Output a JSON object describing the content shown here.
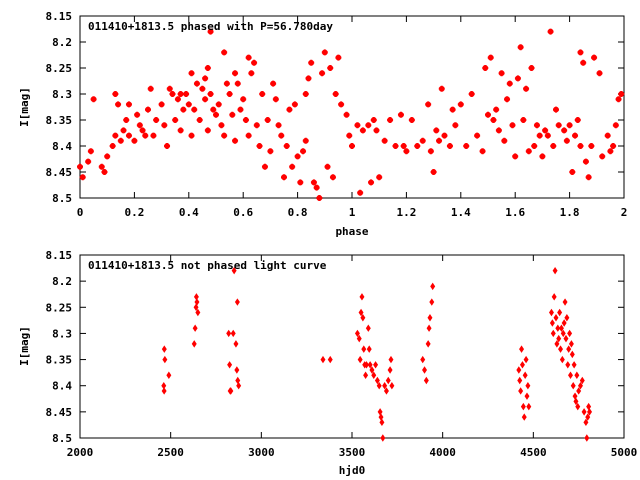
{
  "chart_data": [
    {
      "type": "scatter",
      "title": "011410+1813.5 phased with P=56.780day",
      "xlabel": "phase",
      "ylabel": "I[mag]",
      "xlim": [
        0,
        2
      ],
      "ylim": [
        8.15,
        8.5
      ],
      "y_inverted": true,
      "x_ticks": [
        "0",
        "0.2",
        "0.4",
        "0.6",
        "0.8",
        "1",
        "1.2",
        "1.4",
        "1.6",
        "1.8",
        "2"
      ],
      "y_ticks": [
        "8.15",
        "8.2",
        "8.25",
        "8.3",
        "8.35",
        "8.4",
        "8.45",
        "8.5"
      ],
      "marker": "plus",
      "color": "#ff0000",
      "points": [
        [
          0.0,
          8.44
        ],
        [
          0.01,
          8.46
        ],
        [
          0.03,
          8.43
        ],
        [
          0.04,
          8.41
        ],
        [
          0.05,
          8.31
        ],
        [
          0.08,
          8.44
        ],
        [
          0.09,
          8.45
        ],
        [
          0.1,
          8.42
        ],
        [
          0.12,
          8.4
        ],
        [
          0.13,
          8.3
        ],
        [
          0.13,
          8.38
        ],
        [
          0.14,
          8.32
        ],
        [
          0.15,
          8.39
        ],
        [
          0.16,
          8.37
        ],
        [
          0.17,
          8.35
        ],
        [
          0.18,
          8.38
        ],
        [
          0.18,
          8.32
        ],
        [
          0.2,
          8.39
        ],
        [
          0.21,
          8.34
        ],
        [
          0.22,
          8.36
        ],
        [
          0.23,
          8.37
        ],
        [
          0.24,
          8.38
        ],
        [
          0.25,
          8.33
        ],
        [
          0.26,
          8.29
        ],
        [
          0.27,
          8.38
        ],
        [
          0.28,
          8.35
        ],
        [
          0.3,
          8.32
        ],
        [
          0.31,
          8.36
        ],
        [
          0.32,
          8.4
        ],
        [
          0.33,
          8.29
        ],
        [
          0.34,
          8.3
        ],
        [
          0.35,
          8.35
        ],
        [
          0.36,
          8.31
        ],
        [
          0.37,
          8.37
        ],
        [
          0.37,
          8.3
        ],
        [
          0.38,
          8.33
        ],
        [
          0.39,
          8.3
        ],
        [
          0.4,
          8.32
        ],
        [
          0.41,
          8.38
        ],
        [
          0.41,
          8.26
        ],
        [
          0.42,
          8.33
        ],
        [
          0.43,
          8.28
        ],
        [
          0.44,
          8.35
        ],
        [
          0.45,
          8.29
        ],
        [
          0.46,
          8.27
        ],
        [
          0.46,
          8.31
        ],
        [
          0.47,
          8.25
        ],
        [
          0.47,
          8.37
        ],
        [
          0.48,
          8.3
        ],
        [
          0.48,
          8.18
        ],
        [
          0.49,
          8.33
        ],
        [
          0.5,
          8.34
        ],
        [
          0.51,
          8.32
        ],
        [
          0.52,
          8.36
        ],
        [
          0.53,
          8.22
        ],
        [
          0.53,
          8.38
        ],
        [
          0.54,
          8.28
        ],
        [
          0.55,
          8.3
        ],
        [
          0.56,
          8.34
        ],
        [
          0.57,
          8.39
        ],
        [
          0.57,
          8.26
        ],
        [
          0.58,
          8.28
        ],
        [
          0.59,
          8.33
        ],
        [
          0.6,
          8.31
        ],
        [
          0.61,
          8.35
        ],
        [
          0.62,
          8.23
        ],
        [
          0.62,
          8.38
        ],
        [
          0.63,
          8.26
        ],
        [
          0.64,
          8.24
        ],
        [
          0.65,
          8.36
        ],
        [
          0.66,
          8.4
        ],
        [
          0.67,
          8.3
        ],
        [
          0.68,
          8.44
        ],
        [
          0.69,
          8.35
        ],
        [
          0.7,
          8.41
        ],
        [
          0.71,
          8.28
        ],
        [
          0.72,
          8.31
        ],
        [
          0.73,
          8.36
        ],
        [
          0.74,
          8.38
        ],
        [
          0.75,
          8.46
        ],
        [
          0.76,
          8.4
        ],
        [
          0.77,
          8.33
        ],
        [
          0.78,
          8.44
        ],
        [
          0.79,
          8.32
        ],
        [
          0.8,
          8.42
        ],
        [
          0.81,
          8.47
        ],
        [
          0.82,
          8.41
        ],
        [
          0.83,
          8.39
        ],
        [
          0.83,
          8.3
        ],
        [
          0.84,
          8.27
        ],
        [
          0.85,
          8.24
        ],
        [
          0.86,
          8.47
        ],
        [
          0.87,
          8.48
        ],
        [
          0.88,
          8.5
        ],
        [
          0.89,
          8.26
        ],
        [
          0.9,
          8.22
        ],
        [
          0.91,
          8.44
        ],
        [
          0.92,
          8.25
        ],
        [
          0.93,
          8.46
        ],
        [
          0.94,
          8.3
        ],
        [
          0.95,
          8.23
        ],
        [
          0.96,
          8.32
        ],
        [
          0.98,
          8.34
        ],
        [
          0.99,
          8.38
        ],
        [
          1.0,
          8.4
        ],
        [
          1.02,
          8.36
        ],
        [
          1.03,
          8.49
        ],
        [
          1.04,
          8.37
        ],
        [
          1.06,
          8.36
        ],
        [
          1.07,
          8.47
        ],
        [
          1.08,
          8.35
        ],
        [
          1.09,
          8.37
        ],
        [
          1.1,
          8.46
        ],
        [
          1.12,
          8.39
        ],
        [
          1.14,
          8.35
        ],
        [
          1.16,
          8.4
        ],
        [
          1.18,
          8.34
        ],
        [
          1.19,
          8.4
        ],
        [
          1.2,
          8.41
        ],
        [
          1.22,
          8.35
        ],
        [
          1.24,
          8.4
        ],
        [
          1.26,
          8.39
        ],
        [
          1.28,
          8.32
        ],
        [
          1.29,
          8.41
        ],
        [
          1.3,
          8.45
        ],
        [
          1.31,
          8.37
        ],
        [
          1.32,
          8.39
        ],
        [
          1.33,
          8.29
        ],
        [
          1.34,
          8.38
        ],
        [
          1.36,
          8.4
        ],
        [
          1.37,
          8.33
        ],
        [
          1.38,
          8.36
        ],
        [
          1.4,
          8.32
        ],
        [
          1.42,
          8.4
        ],
        [
          1.44,
          8.3
        ],
        [
          1.46,
          8.38
        ],
        [
          1.48,
          8.41
        ],
        [
          1.49,
          8.25
        ],
        [
          1.5,
          8.34
        ],
        [
          1.51,
          8.23
        ],
        [
          1.52,
          8.35
        ],
        [
          1.53,
          8.33
        ],
        [
          1.54,
          8.37
        ],
        [
          1.55,
          8.26
        ],
        [
          1.56,
          8.39
        ],
        [
          1.57,
          8.31
        ],
        [
          1.58,
          8.28
        ],
        [
          1.59,
          8.36
        ],
        [
          1.6,
          8.42
        ],
        [
          1.61,
          8.27
        ],
        [
          1.62,
          8.21
        ],
        [
          1.63,
          8.35
        ],
        [
          1.64,
          8.29
        ],
        [
          1.65,
          8.41
        ],
        [
          1.66,
          8.25
        ],
        [
          1.67,
          8.4
        ],
        [
          1.68,
          8.36
        ],
        [
          1.69,
          8.38
        ],
        [
          1.7,
          8.42
        ],
        [
          1.71,
          8.37
        ],
        [
          1.72,
          8.38
        ],
        [
          1.73,
          8.18
        ],
        [
          1.74,
          8.4
        ],
        [
          1.75,
          8.33
        ],
        [
          1.76,
          8.36
        ],
        [
          1.78,
          8.37
        ],
        [
          1.79,
          8.39
        ],
        [
          1.8,
          8.36
        ],
        [
          1.81,
          8.45
        ],
        [
          1.82,
          8.38
        ],
        [
          1.83,
          8.35
        ],
        [
          1.84,
          8.22
        ],
        [
          1.84,
          8.4
        ],
        [
          1.85,
          8.24
        ],
        [
          1.86,
          8.43
        ],
        [
          1.87,
          8.46
        ],
        [
          1.88,
          8.4
        ],
        [
          1.89,
          8.23
        ],
        [
          1.91,
          8.26
        ],
        [
          1.92,
          8.42
        ],
        [
          1.94,
          8.38
        ],
        [
          1.95,
          8.41
        ],
        [
          1.96,
          8.4
        ],
        [
          1.97,
          8.36
        ],
        [
          1.98,
          8.31
        ],
        [
          1.99,
          8.3
        ]
      ]
    },
    {
      "type": "scatter",
      "title": "011410+1813.5 not phased light curve",
      "xlabel": "hjd0",
      "ylabel": "I[mag]",
      "xlim": [
        2000,
        5000
      ],
      "ylim": [
        8.15,
        8.5
      ],
      "y_inverted": true,
      "x_ticks": [
        "2000",
        "2500",
        "3000",
        "3500",
        "4000",
        "4500",
        "5000"
      ],
      "y_ticks": [
        "8.15",
        "8.2",
        "8.25",
        "8.3",
        "8.35",
        "8.4",
        "8.45",
        "8.5"
      ],
      "marker": "diamond",
      "color": "#ff0000",
      "points": [
        [
          2465,
          8.33
        ],
        [
          2468,
          8.35
        ],
        [
          2462,
          8.4
        ],
        [
          2464,
          8.41
        ],
        [
          2490,
          8.38
        ],
        [
          2630,
          8.32
        ],
        [
          2635,
          8.29
        ],
        [
          2640,
          8.25
        ],
        [
          2642,
          8.23
        ],
        [
          2645,
          8.24
        ],
        [
          2650,
          8.26
        ],
        [
          2820,
          8.3
        ],
        [
          2825,
          8.36
        ],
        [
          2828,
          8.41
        ],
        [
          2832,
          8.41
        ],
        [
          2845,
          8.3
        ],
        [
          2850,
          8.18
        ],
        [
          2860,
          8.32
        ],
        [
          2865,
          8.37
        ],
        [
          2868,
          8.24
        ],
        [
          2870,
          8.39
        ],
        [
          2875,
          8.4
        ],
        [
          3340,
          8.35
        ],
        [
          3380,
          8.35
        ],
        [
          3530,
          8.3
        ],
        [
          3540,
          8.31
        ],
        [
          3545,
          8.35
        ],
        [
          3550,
          8.26
        ],
        [
          3555,
          8.23
        ],
        [
          3560,
          8.27
        ],
        [
          3565,
          8.33
        ],
        [
          3570,
          8.36
        ],
        [
          3575,
          8.38
        ],
        [
          3580,
          8.36
        ],
        [
          3590,
          8.29
        ],
        [
          3595,
          8.33
        ],
        [
          3600,
          8.36
        ],
        [
          3610,
          8.37
        ],
        [
          3620,
          8.38
        ],
        [
          3630,
          8.36
        ],
        [
          3640,
          8.39
        ],
        [
          3650,
          8.4
        ],
        [
          3655,
          8.45
        ],
        [
          3660,
          8.46
        ],
        [
          3665,
          8.47
        ],
        [
          3670,
          8.5
        ],
        [
          3680,
          8.4
        ],
        [
          3690,
          8.41
        ],
        [
          3700,
          8.39
        ],
        [
          3710,
          8.37
        ],
        [
          3715,
          8.35
        ],
        [
          3720,
          8.4
        ],
        [
          3890,
          8.35
        ],
        [
          3900,
          8.37
        ],
        [
          3910,
          8.39
        ],
        [
          3920,
          8.32
        ],
        [
          3925,
          8.29
        ],
        [
          3930,
          8.27
        ],
        [
          3940,
          8.24
        ],
        [
          3945,
          8.21
        ],
        [
          4420,
          8.37
        ],
        [
          4425,
          8.39
        ],
        [
          4430,
          8.41
        ],
        [
          4435,
          8.33
        ],
        [
          4440,
          8.36
        ],
        [
          4445,
          8.44
        ],
        [
          4450,
          8.46
        ],
        [
          4455,
          8.38
        ],
        [
          4460,
          8.35
        ],
        [
          4465,
          8.42
        ],
        [
          4470,
          8.4
        ],
        [
          4475,
          8.44
        ],
        [
          4600,
          8.26
        ],
        [
          4605,
          8.28
        ],
        [
          4610,
          8.3
        ],
        [
          4615,
          8.23
        ],
        [
          4620,
          8.18
        ],
        [
          4625,
          8.27
        ],
        [
          4630,
          8.32
        ],
        [
          4635,
          8.29
        ],
        [
          4640,
          8.31
        ],
        [
          4645,
          8.26
        ],
        [
          4650,
          8.33
        ],
        [
          4655,
          8.29
        ],
        [
          4660,
          8.35
        ],
        [
          4665,
          8.3
        ],
        [
          4670,
          8.28
        ],
        [
          4675,
          8.24
        ],
        [
          4680,
          8.31
        ],
        [
          4685,
          8.27
        ],
        [
          4690,
          8.36
        ],
        [
          4695,
          8.33
        ],
        [
          4700,
          8.3
        ],
        [
          4705,
          8.38
        ],
        [
          4710,
          8.32
        ],
        [
          4715,
          8.34
        ],
        [
          4720,
          8.4
        ],
        [
          4725,
          8.36
        ],
        [
          4730,
          8.42
        ],
        [
          4735,
          8.43
        ],
        [
          4740,
          8.38
        ],
        [
          4745,
          8.44
        ],
        [
          4750,
          8.41
        ],
        [
          4760,
          8.4
        ],
        [
          4770,
          8.39
        ],
        [
          4780,
          8.45
        ],
        [
          4790,
          8.47
        ],
        [
          4795,
          8.5
        ],
        [
          4800,
          8.46
        ],
        [
          4805,
          8.44
        ],
        [
          4810,
          8.45
        ]
      ]
    }
  ]
}
